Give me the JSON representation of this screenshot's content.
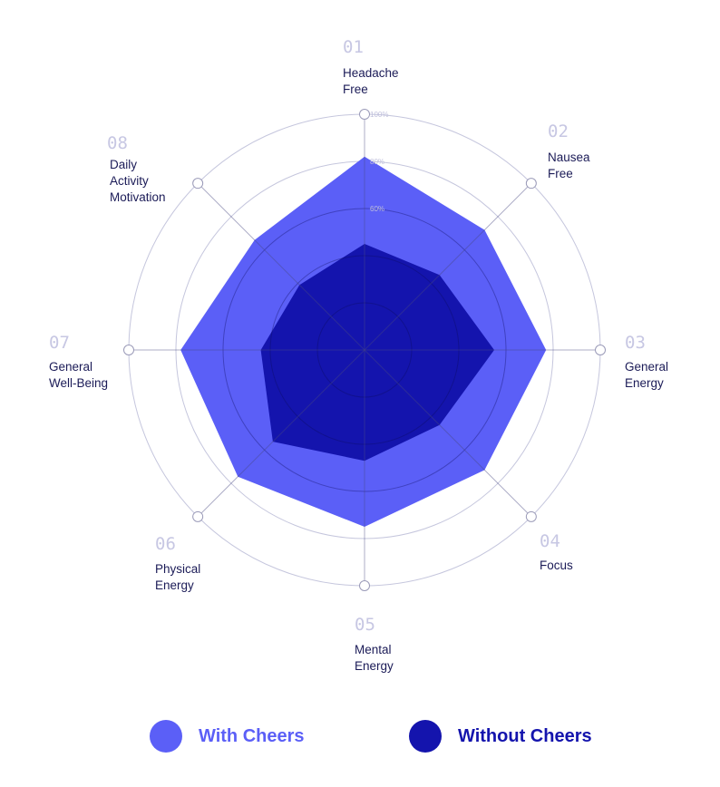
{
  "chart_data": {
    "type": "radar",
    "axes": [
      {
        "num": "01",
        "label": [
          "Headache",
          "Free"
        ]
      },
      {
        "num": "02",
        "label": [
          "Nausea",
          "Free"
        ]
      },
      {
        "num": "03",
        "label": [
          "General",
          "Energy"
        ]
      },
      {
        "num": "04",
        "label": [
          "Focus"
        ]
      },
      {
        "num": "05",
        "label": [
          "Mental",
          "Energy"
        ]
      },
      {
        "num": "06",
        "label": [
          "Physical",
          "Energy"
        ]
      },
      {
        "num": "07",
        "label": [
          "General",
          "Well-Being"
        ]
      },
      {
        "num": "08",
        "label": [
          "Daily",
          "Activity",
          "Motivation"
        ]
      }
    ],
    "rlim": [
      0,
      100
    ],
    "ticks": [
      {
        "value": 100,
        "label": "100%"
      },
      {
        "value": 80,
        "label": "80%"
      },
      {
        "value": 60,
        "label": "60%"
      }
    ],
    "series": [
      {
        "name": "With Cheers",
        "color": "#5b5ff7",
        "values": [
          82,
          72,
          77,
          72,
          75,
          76,
          78,
          66
        ]
      },
      {
        "name": "Without Cheers",
        "color": "#1414ad",
        "values": [
          45,
          45,
          55,
          45,
          47,
          55,
          44,
          39
        ]
      }
    ]
  },
  "legend": {
    "with_label": "With Cheers",
    "without_label": "Without Cheers",
    "with_color": "#5b5ff7",
    "without_color": "#1414ad"
  }
}
